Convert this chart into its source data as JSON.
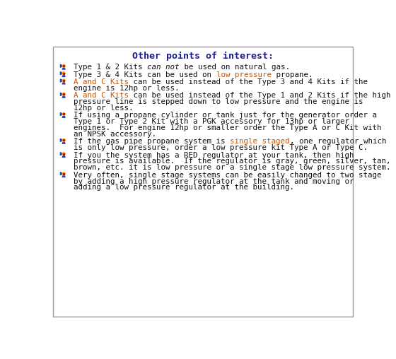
{
  "title": "Other points of interest:",
  "title_color": "#1a1a8c",
  "title_fontsize": 9.5,
  "bg_color": "#ffffff",
  "border_color": "#999999",
  "text_color": "#111111",
  "highlight_orange": "#cc5500",
  "font_size": 7.8,
  "bullet_items": [
    [
      {
        "t": "Type 1 & 2 Kits ",
        "c": "#111111",
        "s": "normal"
      },
      {
        "t": "can not",
        "c": "#111111",
        "s": "italic"
      },
      {
        "t": " be used on natural gas.",
        "c": "#111111",
        "s": "normal"
      }
    ],
    [
      {
        "t": "Type 3 & 4 Kits can be used on ",
        "c": "#111111",
        "s": "normal"
      },
      {
        "t": "low pressure",
        "c": "#cc5500",
        "s": "normal"
      },
      {
        "t": " propane.",
        "c": "#111111",
        "s": "normal"
      }
    ],
    [
      {
        "t": "A and C Kits",
        "c": "#cc5500",
        "s": "normal"
      },
      {
        "t": " can be used instead of the Type 3 and 4 Kits if the\nengine is 12hp or less.",
        "c": "#111111",
        "s": "normal"
      }
    ],
    [
      {
        "t": "A and C Kits",
        "c": "#cc5500",
        "s": "normal"
      },
      {
        "t": " can be used instead of the Type 1 and 2 Kits if the high\npressure line is stepped down to low pressure and the engine is\n12hp or less.",
        "c": "#111111",
        "s": "normal"
      }
    ],
    [
      {
        "t": "If using a propane cylinder or tank just for the generator order a\nType 1 or Type 2 Kit with a PGK accessory for 13hp or larger\nengines.  For engine 12hp or smaller order the Type A or C Kit with\nan NPSK accessory.",
        "c": "#111111",
        "s": "normal"
      }
    ],
    [
      {
        "t": "If the gas pipe propane system is ",
        "c": "#111111",
        "s": "normal"
      },
      {
        "t": "single staged",
        "c": "#cc5500",
        "s": "normal"
      },
      {
        "t": ", one regulator which\nis only low pressure, order a low pressure kit Type A or Type C.",
        "c": "#111111",
        "s": "normal"
      }
    ],
    [
      {
        "t": "If you the system has a RED regulator at your tank, then high\npressure is available.  If the regulator is gray, green, silver, tan,\nbrown, etc. it is low pressure or a single stage low pressure system.",
        "c": "#111111",
        "s": "normal"
      }
    ],
    [
      {
        "t": "Very often, single stage systems can be easily changed to two stage\nby adding a high pressure regulator at the tank and moving or\nadding a low pressure regulator at the building.",
        "c": "#111111",
        "s": "normal"
      }
    ]
  ]
}
